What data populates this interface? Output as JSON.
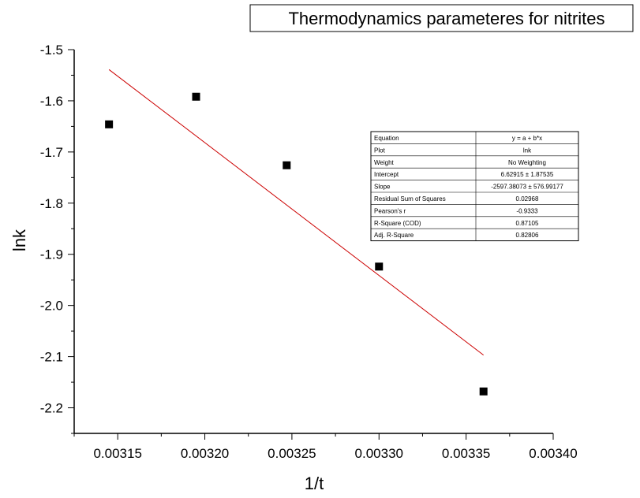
{
  "chart_data": {
    "type": "scatter",
    "title": "Thermodynamics parameteres for nitrites",
    "xlabel": "1/t",
    "ylabel": "lnk",
    "xlim": [
      0.003125,
      0.0034
    ],
    "ylim": [
      -2.25,
      -1.5
    ],
    "x_ticks": [
      0.00315,
      0.0032,
      0.00325,
      0.0033,
      0.00335,
      0.0034
    ],
    "x_tick_labels": [
      "0.00315",
      "0.00320",
      "0.00325",
      "0.00330",
      "0.00335",
      "0.00340"
    ],
    "y_ticks": [
      -1.5,
      -1.6,
      -1.7,
      -1.8,
      -1.9,
      -2.0,
      -2.1,
      -2.2
    ],
    "y_tick_labels": [
      "-1.5",
      "-1.6",
      "-1.7",
      "-1.8",
      "-1.9",
      "-2.0",
      "-2.1",
      "-2.2"
    ],
    "grid": false,
    "series": [
      {
        "type": "scatter",
        "marker": "square",
        "color": "#000000",
        "x": [
          0.003145,
          0.003195,
          0.003247,
          0.0033,
          0.00336
        ],
        "y": [
          -1.646,
          -1.592,
          -1.726,
          -1.924,
          -2.168
        ]
      },
      {
        "type": "line",
        "color": "#cc0000",
        "x": [
          0.003145,
          0.00336
        ],
        "y": [
          -1.539,
          -2.097
        ]
      }
    ],
    "stats_table": [
      [
        "Equation",
        "y = a + b*x"
      ],
      [
        "Plot",
        "lnk"
      ],
      [
        "Weight",
        "No Weighting"
      ],
      [
        "Intercept",
        "6.62915 ± 1.87535"
      ],
      [
        "Slope",
        "-2597.38073 ± 576.99177"
      ],
      [
        "Residual Sum of Squares",
        "0.02968"
      ],
      [
        "Pearson's r",
        "-0.9333"
      ],
      [
        "R-Square (COD)",
        "0.87105"
      ],
      [
        "Adj. R-Square",
        "0.82806"
      ]
    ]
  }
}
